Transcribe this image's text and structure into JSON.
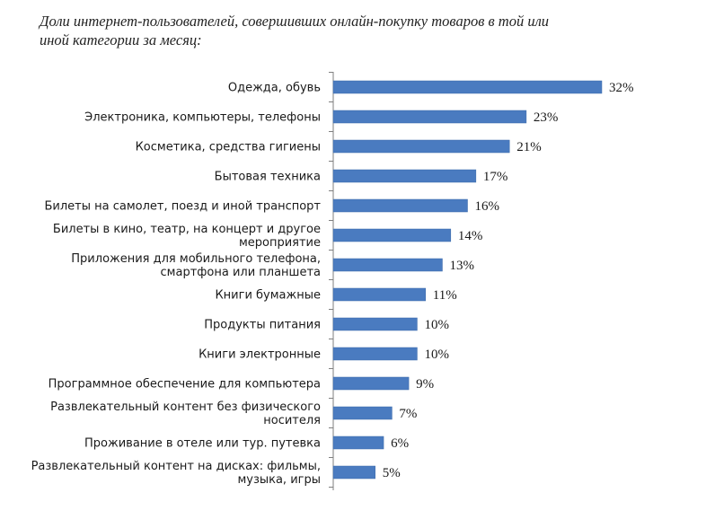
{
  "title_lines": [
    "Доли интернет-пользователей, совершивших онлайн-покупку товаров в той или",
    "иной категории за месяц:"
  ],
  "chart_data": {
    "type": "bar",
    "orientation": "horizontal",
    "title": "Доли интернет-пользователей, совершивших онлайн-покупку товаров в той или иной категории за месяц:",
    "categories": [
      [
        "Одежда, обувь"
      ],
      [
        "Электроника, компьютеры, телефоны"
      ],
      [
        "Косметика, средства гигиены"
      ],
      [
        "Бытовая техника"
      ],
      [
        "Билеты на самолет, поезд и иной транспорт"
      ],
      [
        "Билеты в кино, театр, на концерт и другое",
        "мероприятие"
      ],
      [
        "Приложения для мобильного телефона,",
        "смартфона или планшета"
      ],
      [
        "Книги бумажные"
      ],
      [
        "Продукты питания"
      ],
      [
        "Книги электронные"
      ],
      [
        "Программное обеспечение для компьютера"
      ],
      [
        "Развлекательный контент без физического",
        "носителя"
      ],
      [
        "Проживание в отеле или тур. путевка"
      ],
      [
        "Развлекательный контент на дисках: фильмы,",
        "музыка, игры"
      ]
    ],
    "values": [
      32,
      23,
      21,
      17,
      16,
      14,
      13,
      11,
      10,
      10,
      9,
      7,
      6,
      5
    ],
    "value_labels": [
      "32%",
      "23%",
      "21%",
      "17%",
      "16%",
      "14%",
      "13%",
      "11%",
      "10%",
      "10%",
      "9%",
      "7%",
      "6%",
      "5%"
    ],
    "xlabel": "",
    "ylabel": "",
    "xlim": [
      0,
      32
    ],
    "grid": false,
    "bar_color": "#4a7bc0"
  }
}
